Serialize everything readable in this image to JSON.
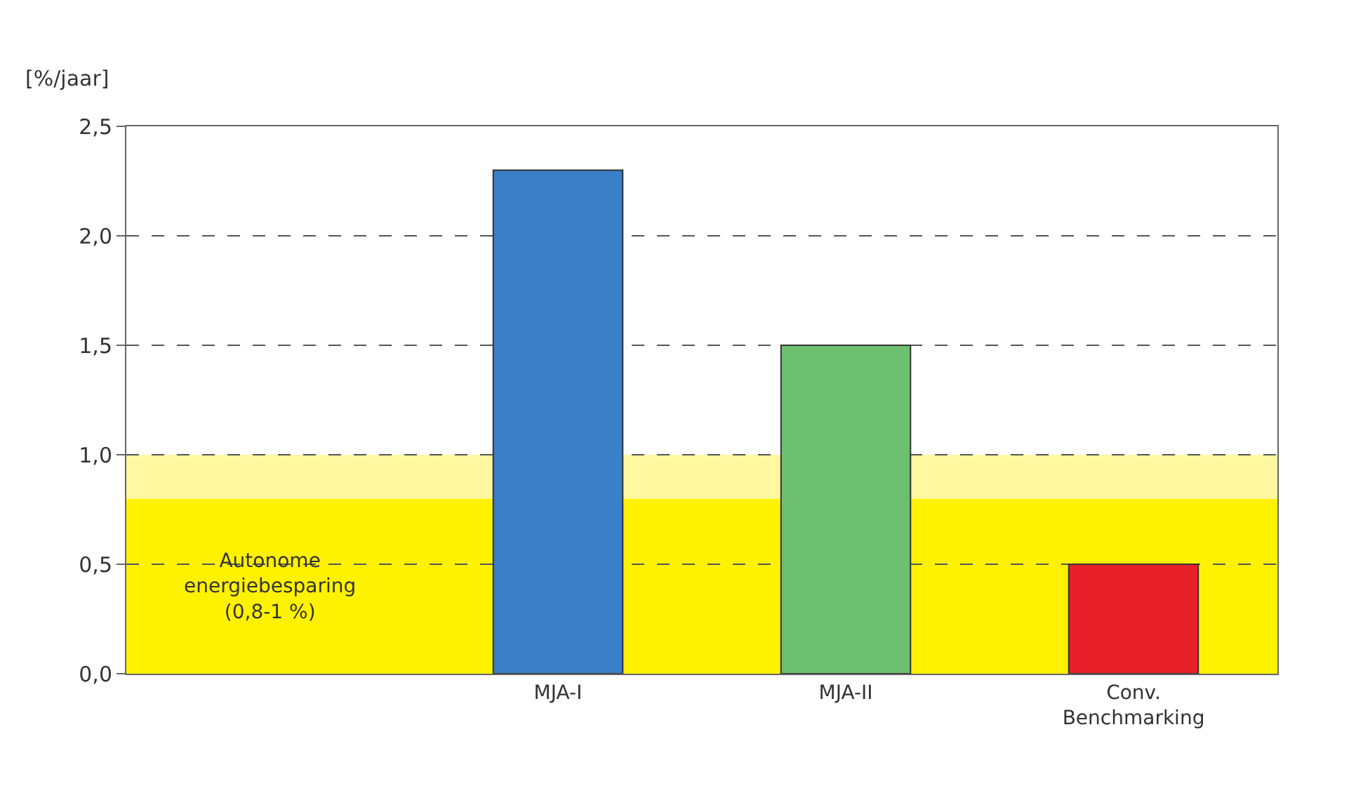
{
  "chart_data": {
    "type": "bar",
    "ylabel": "[%/jaar]",
    "categories": [
      null,
      "MJA-I",
      "MJA-II",
      "Conv.\nBenchmarking"
    ],
    "values": [
      null,
      2.3,
      1.5,
      0.5
    ],
    "colors": [
      "#3a7fc8",
      "#3a7fc8",
      "#6cc070",
      "#e8202a"
    ],
    "ylim": [
      0,
      2.5
    ],
    "yticks": [
      {
        "value": 0,
        "label": "0,0"
      },
      {
        "value": 0.5,
        "label": "0,5"
      },
      {
        "value": 1.0,
        "label": "1,0"
      },
      {
        "value": 1.5,
        "label": "1,5"
      },
      {
        "value": 2.0,
        "label": "2,0"
      },
      {
        "value": 2.5,
        "label": "2,5"
      }
    ],
    "grid": "y",
    "bands": [
      {
        "axis": "y",
        "from": 0,
        "to": 0.8,
        "color": "#fff200",
        "label": "Autonome\nenergiebesparing\n(0,8-1 %)"
      },
      {
        "axis": "y",
        "from": 0.8,
        "to": 1.0,
        "color": "#fff8a0"
      }
    ]
  }
}
